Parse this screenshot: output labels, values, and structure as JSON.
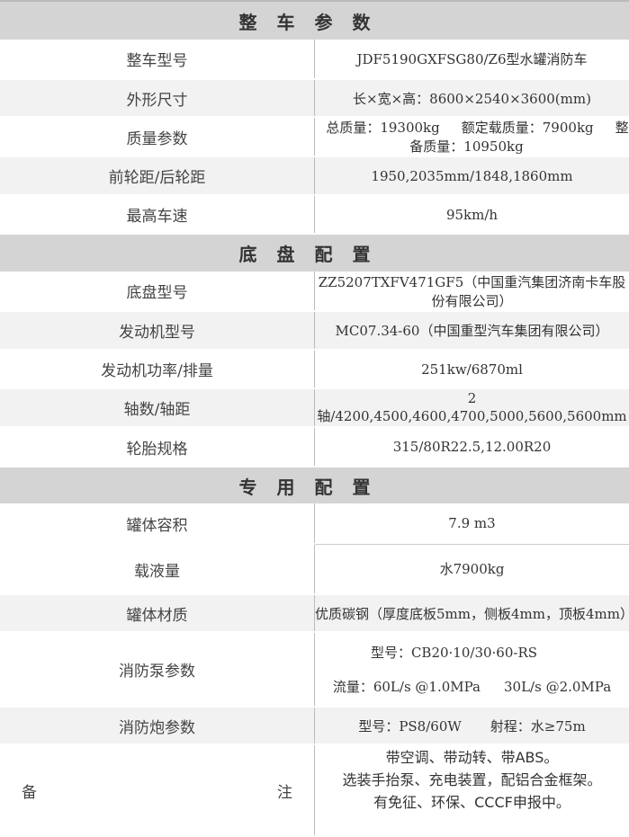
{
  "sections": [
    {
      "title": "整车参数",
      "rows": [
        {
          "label": "整车型号",
          "value": "JDF5190GXFSG80/Z6型水罐消防车"
        },
        {
          "label": "外形尺寸",
          "value": "长×宽×高：8600×2540×3600(mm)"
        },
        {
          "label": "质量参数",
          "values": [
            "总质量：19300kg",
            "额定载质量：7900kg",
            "整备质量：10950kg"
          ]
        },
        {
          "label": "前轮距/后轮距",
          "value": "1950,2035mm/1848,1860mm"
        },
        {
          "label": "最高车速",
          "value": "95km/h"
        }
      ]
    },
    {
      "title": "底盘配置",
      "rows": [
        {
          "label": "底盘型号",
          "value": "ZZ5207TXFV471GF5（中国重汽集团济南卡车股份有限公司）"
        },
        {
          "label": "发动机型号",
          "value": "MC07.34-60（中国重型汽车集团有限公司）"
        },
        {
          "label": "发动机功率/排量",
          "value": "251kw/6870ml"
        },
        {
          "label": "轴数/轴距",
          "value": "2轴/4200,4500,4600,4700,5000,5600,5600mm"
        },
        {
          "label": "轮胎规格",
          "value": "315/80R22.5,12.00R20"
        }
      ]
    },
    {
      "title": "专用配置",
      "rows": [
        {
          "label": "罐体容积",
          "value": "7.9 m3"
        },
        {
          "label": "载液量",
          "value": "水7900kg"
        },
        {
          "label": "罐体材质",
          "value": "优质碳钢（厚度底板5mm，侧板4mm，顶板4mm）"
        },
        {
          "label": "消防泵参数",
          "values": [
            "型号：CB20·10/30·60-RS",
            "流量：60L/s @1.0MPa",
            "30L/s @2.0MPa"
          ]
        },
        {
          "label": "消防炮参数",
          "values": [
            "型号：PS8/60W",
            "射程：水≥75m"
          ]
        },
        {
          "label_parts": [
            "备",
            "注"
          ],
          "lines": [
            "带空调、带动转、带ABS。",
            "选装手抬泵、充电装置，配铝合金框架。",
            "有免征、环保、CCCF申报中。"
          ]
        }
      ]
    }
  ]
}
